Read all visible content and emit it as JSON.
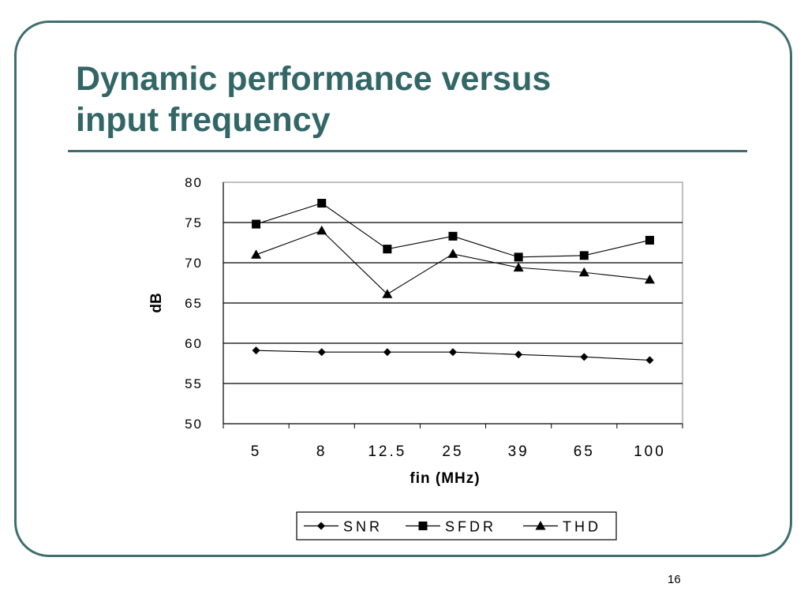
{
  "slide": {
    "title_line1": "Dynamic performance versus",
    "title_line2": "input frequency",
    "page_number": "16",
    "colors": {
      "title": "#336666",
      "frame": "#3f6e6f"
    }
  },
  "chart_data": {
    "type": "line",
    "title": "",
    "xlabel": "fin (MHz)",
    "ylabel": "dB",
    "categories": [
      "5",
      "8",
      "12.5",
      "25",
      "39",
      "65",
      "100"
    ],
    "ylim": [
      50,
      80
    ],
    "yticks": [
      50,
      55,
      60,
      65,
      70,
      75,
      80
    ],
    "grid": "horizontal",
    "legend_position": "bottom",
    "series": [
      {
        "name": "SNR",
        "marker": "diamond",
        "values": [
          59.1,
          58.9,
          58.9,
          58.9,
          58.6,
          58.3,
          57.9
        ]
      },
      {
        "name": "SFDR",
        "marker": "square",
        "values": [
          74.8,
          77.4,
          71.7,
          73.3,
          70.7,
          70.9,
          72.8
        ]
      },
      {
        "name": "THD",
        "marker": "triangle",
        "values": [
          71.0,
          74.0,
          66.1,
          71.1,
          69.4,
          68.8,
          67.9
        ]
      }
    ]
  }
}
